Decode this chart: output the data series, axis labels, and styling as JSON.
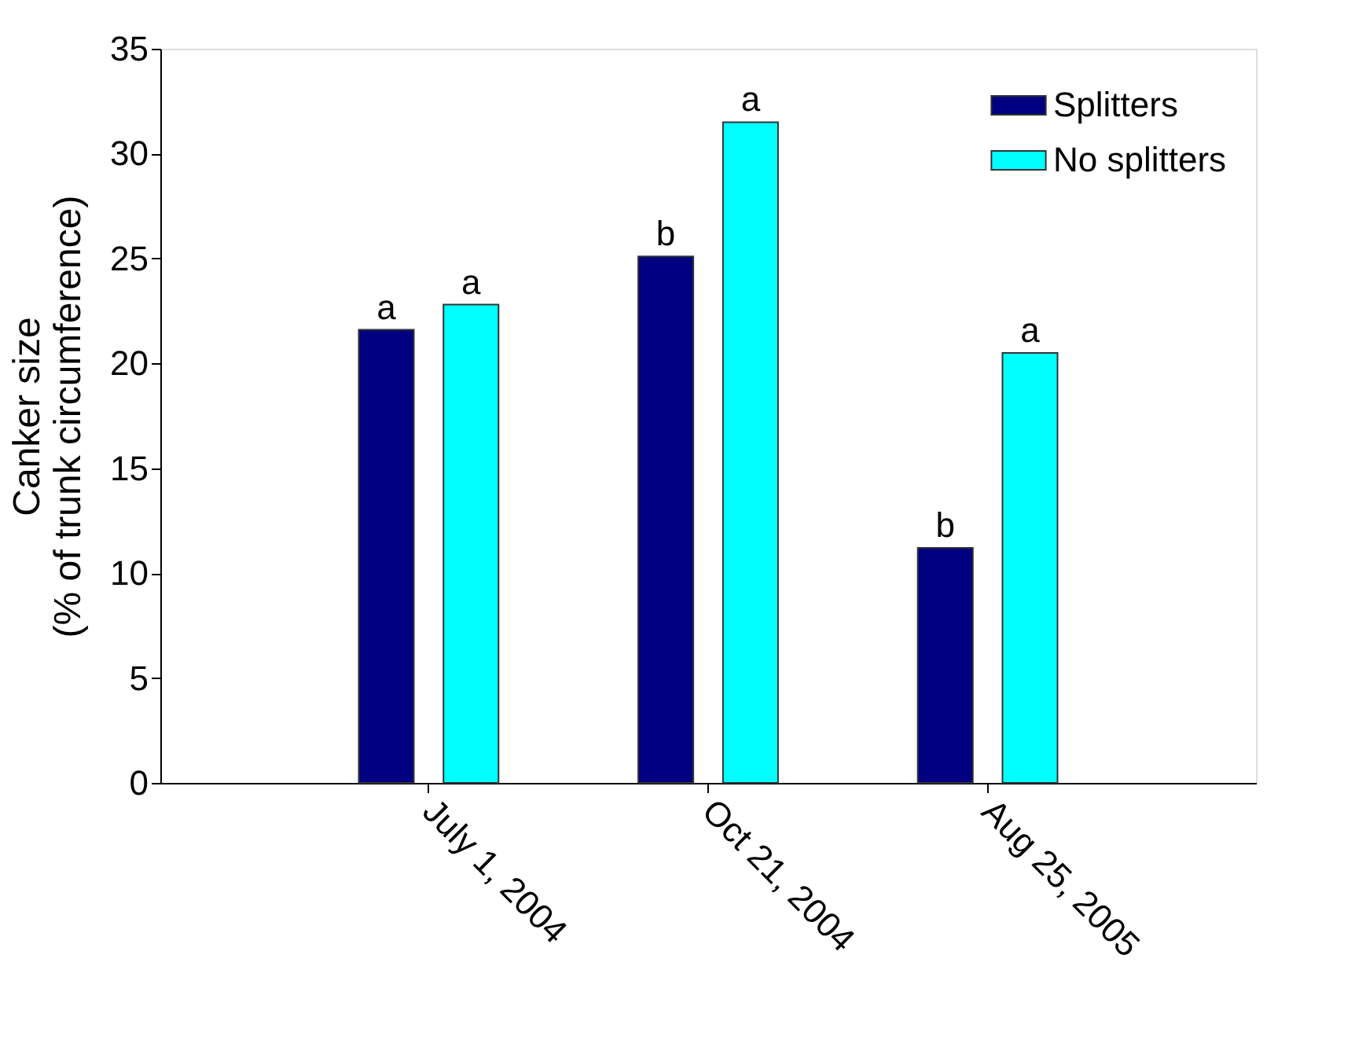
{
  "chart_data": {
    "type": "bar",
    "ylabel": "Canker size\n(% of trunk circumference)",
    "categories": [
      "July 1, 2004",
      "Oct 21, 2004",
      "Aug 25, 2005"
    ],
    "series": [
      {
        "name": "Splitters",
        "color": "#000080",
        "values": [
          21.6,
          25.1,
          11.2
        ],
        "value_labels": [
          "a",
          "b",
          "b"
        ]
      },
      {
        "name": "No splitters",
        "color": "#00ffff",
        "values": [
          22.8,
          31.5,
          20.5
        ],
        "value_labels": [
          "a",
          "a",
          "a"
        ]
      }
    ],
    "ylim": [
      0,
      35
    ],
    "yticks": [
      0,
      5,
      10,
      15,
      20,
      25,
      30,
      35
    ],
    "grid": false,
    "legend": "top right"
  }
}
